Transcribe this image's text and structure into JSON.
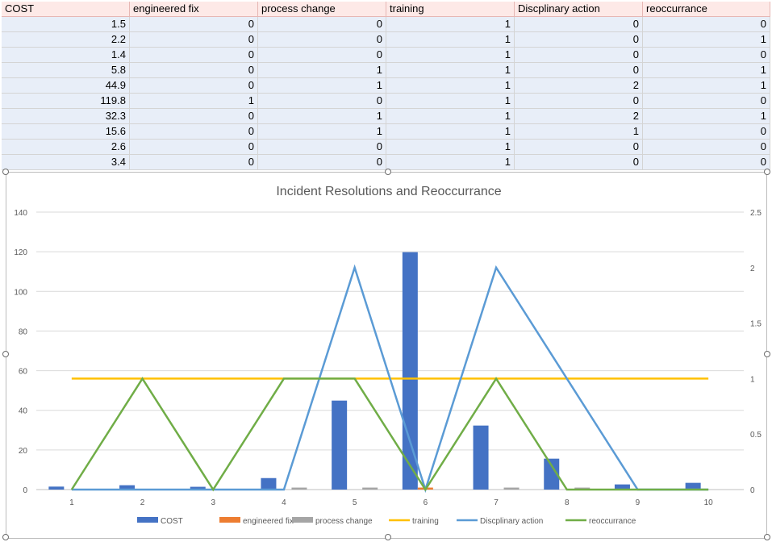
{
  "sheet": {
    "headers": [
      "COST",
      "engineered fix",
      "process change",
      "training",
      "Discplinary action",
      "reoccurrance"
    ],
    "rows": [
      [
        "1.5",
        "0",
        "0",
        "1",
        "0",
        "0"
      ],
      [
        "2.2",
        "0",
        "0",
        "1",
        "0",
        "1"
      ],
      [
        "1.4",
        "0",
        "0",
        "1",
        "0",
        "0"
      ],
      [
        "5.8",
        "0",
        "1",
        "1",
        "0",
        "1"
      ],
      [
        "44.9",
        "0",
        "1",
        "1",
        "2",
        "1"
      ],
      [
        "119.8",
        "1",
        "0",
        "1",
        "0",
        "0"
      ],
      [
        "32.3",
        "0",
        "1",
        "1",
        "2",
        "1"
      ],
      [
        "15.6",
        "0",
        "1",
        "1",
        "1",
        "0"
      ],
      [
        "2.6",
        "0",
        "0",
        "1",
        "0",
        "0"
      ],
      [
        "3.4",
        "0",
        "0",
        "1",
        "0",
        "0"
      ]
    ]
  },
  "chart_data": {
    "type": "bar",
    "title": "Incident Resolutions and Reoccurrance",
    "categories": [
      "1",
      "2",
      "3",
      "4",
      "5",
      "6",
      "7",
      "8",
      "9",
      "10"
    ],
    "y_left": {
      "range": [
        0,
        140
      ],
      "ticks": [
        "0",
        "20",
        "40",
        "60",
        "80",
        "100",
        "120",
        "140"
      ]
    },
    "y_right": {
      "range": [
        0,
        2.5
      ],
      "ticks": [
        "0",
        "0.5",
        "1",
        "1.5",
        "2",
        "2.5"
      ]
    },
    "grid": true,
    "legend_position": "bottom",
    "series": [
      {
        "name": "COST",
        "kind": "bar",
        "axis": "left",
        "color": "#4472c4",
        "values": [
          1.5,
          2.2,
          1.4,
          5.8,
          44.9,
          119.8,
          32.3,
          15.6,
          2.6,
          3.4
        ]
      },
      {
        "name": "engineered fix",
        "kind": "bar",
        "axis": "left",
        "color": "#ed7d31",
        "values": [
          0,
          0,
          0,
          0,
          0,
          1,
          0,
          0,
          0,
          0
        ]
      },
      {
        "name": "process change",
        "kind": "bar",
        "axis": "left",
        "color": "#a5a5a5",
        "values": [
          0,
          0,
          0,
          1,
          1,
          0,
          1,
          1,
          0,
          0
        ]
      },
      {
        "name": "training",
        "kind": "line",
        "axis": "right",
        "color": "#ffc000",
        "values": [
          1,
          1,
          1,
          1,
          1,
          1,
          1,
          1,
          1,
          1
        ]
      },
      {
        "name": "Discplinary action",
        "kind": "line",
        "axis": "right",
        "color": "#5b9bd5",
        "values": [
          0,
          0,
          0,
          0,
          2,
          0,
          2,
          1,
          0,
          0
        ]
      },
      {
        "name": "reoccurrance",
        "kind": "line",
        "axis": "right",
        "color": "#70ad47",
        "values": [
          0,
          1,
          0,
          1,
          1,
          0,
          1,
          0,
          0,
          0
        ]
      }
    ]
  }
}
